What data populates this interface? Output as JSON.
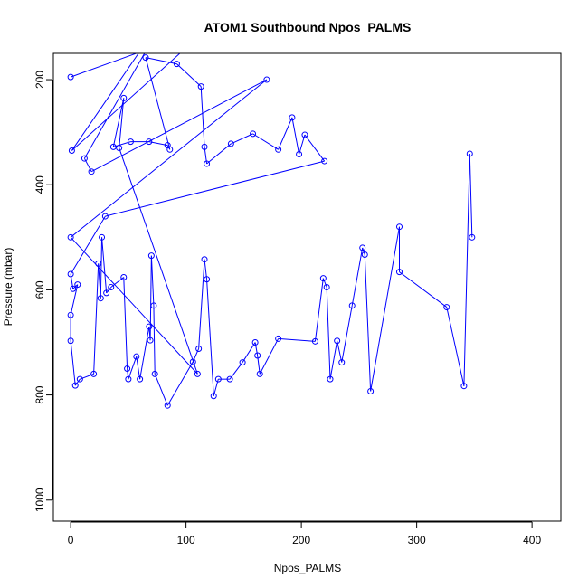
{
  "chart_data": {
    "type": "line",
    "title": "ATOM1 Southbound Npos_PALMS",
    "xlabel": "Npos_PALMS",
    "ylabel": "Pressure (mbar)",
    "xlim": [
      -15,
      425
    ],
    "ylim": [
      1040,
      150
    ],
    "y_reversed": true,
    "xticks": [
      0,
      100,
      200,
      300,
      400
    ],
    "yticks": [
      200,
      400,
      600,
      800,
      1000
    ],
    "grid": false,
    "legend": "none",
    "series": [
      {
        "color": "#0000ff",
        "marker": "open-circle",
        "note_line_extends_beyond_plot": true,
        "points": [
          {
            "x": 0,
            "y": 195
          },
          {
            "x": 120,
            "y": 100
          },
          {
            "x": 1,
            "y": 335
          },
          {
            "x": 90,
            "y": 50
          },
          {
            "x": 12,
            "y": 350
          },
          {
            "x": 18,
            "y": 375
          },
          {
            "x": 170,
            "y": 200
          },
          {
            "x": 0,
            "y": 500
          },
          {
            "x": 110,
            "y": 760
          },
          {
            "x": 42,
            "y": 330
          },
          {
            "x": 46,
            "y": 235
          },
          {
            "x": 37,
            "y": 328
          },
          {
            "x": 52,
            "y": 318
          },
          {
            "x": 68,
            "y": 318
          },
          {
            "x": 84,
            "y": 325
          },
          {
            "x": 86,
            "y": 333
          },
          {
            "x": 65,
            "y": 158
          },
          {
            "x": 92,
            "y": 170
          },
          {
            "x": 113,
            "y": 213
          },
          {
            "x": 116,
            "y": 328
          },
          {
            "x": 118,
            "y": 360
          },
          {
            "x": 139,
            "y": 322
          },
          {
            "x": 158,
            "y": 303
          },
          {
            "x": 180,
            "y": 333
          },
          {
            "x": 192,
            "y": 272
          },
          {
            "x": 198,
            "y": 342
          },
          {
            "x": 203,
            "y": 305
          },
          {
            "x": 220,
            "y": 355
          },
          {
            "x": 30,
            "y": 460
          },
          {
            "x": 0,
            "y": 570
          },
          {
            "x": 2,
            "y": 598
          },
          {
            "x": 6,
            "y": 590
          },
          {
            "x": 0,
            "y": 648
          },
          {
            "x": 0,
            "y": 697
          },
          {
            "x": 4,
            "y": 782
          },
          {
            "x": 8,
            "y": 770
          },
          {
            "x": 20,
            "y": 760
          },
          {
            "x": 24,
            "y": 550
          },
          {
            "x": 26,
            "y": 616
          },
          {
            "x": 27,
            "y": 500
          },
          {
            "x": 31,
            "y": 606
          },
          {
            "x": 35,
            "y": 595
          },
          {
            "x": 46,
            "y": 576
          },
          {
            "x": 49,
            "y": 750
          },
          {
            "x": 50,
            "y": 770
          },
          {
            "x": 57,
            "y": 727
          },
          {
            "x": 60,
            "y": 770
          },
          {
            "x": 68,
            "y": 670
          },
          {
            "x": 69,
            "y": 696
          },
          {
            "x": 70,
            "y": 535
          },
          {
            "x": 72,
            "y": 630
          },
          {
            "x": 73,
            "y": 760
          },
          {
            "x": 84,
            "y": 820
          },
          {
            "x": 106,
            "y": 737
          },
          {
            "x": 111,
            "y": 712
          },
          {
            "x": 116,
            "y": 542
          },
          {
            "x": 118,
            "y": 580
          },
          {
            "x": 124,
            "y": 802
          },
          {
            "x": 128,
            "y": 770
          },
          {
            "x": 138,
            "y": 770
          },
          {
            "x": 149,
            "y": 738
          },
          {
            "x": 160,
            "y": 700
          },
          {
            "x": 162,
            "y": 725
          },
          {
            "x": 164,
            "y": 760
          },
          {
            "x": 180,
            "y": 693
          },
          {
            "x": 212,
            "y": 698
          },
          {
            "x": 219,
            "y": 578
          },
          {
            "x": 222,
            "y": 595
          },
          {
            "x": 225,
            "y": 770
          },
          {
            "x": 231,
            "y": 697
          },
          {
            "x": 235,
            "y": 738
          },
          {
            "x": 244,
            "y": 630
          },
          {
            "x": 253,
            "y": 520
          },
          {
            "x": 255,
            "y": 533
          },
          {
            "x": 260,
            "y": 793
          },
          {
            "x": 285,
            "y": 480
          },
          {
            "x": 285,
            "y": 566
          },
          {
            "x": 326,
            "y": 633
          },
          {
            "x": 341,
            "y": 783
          },
          {
            "x": 346,
            "y": 341
          },
          {
            "x": 348,
            "y": 500
          }
        ]
      }
    ]
  }
}
